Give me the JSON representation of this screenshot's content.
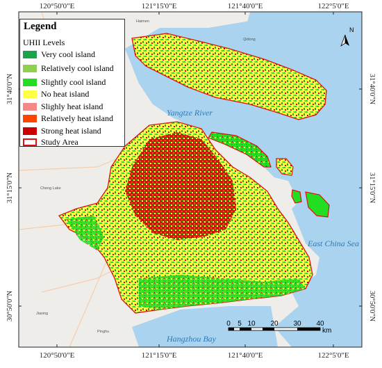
{
  "map": {
    "graticule": {
      "top_labels": [
        "120°50'0\"E",
        "121°15'0\"E",
        "121°40'0\"E",
        "122°5'0\"E"
      ],
      "bottom_labels": [
        "120°50'0\"E",
        "121°15'0\"E",
        "121°40'0\"E",
        "122°5'0\"E"
      ],
      "left_labels": [
        "31°40'0\"N",
        "31°15'0\"N",
        "30°50'0\"N"
      ],
      "right_labels": [
        "31°40'0\"N",
        "31°15'0\"N",
        "30°50'0\"N"
      ]
    },
    "water_labels": {
      "yangtze": "Yangtze River",
      "east_china_sea": "East China Sea",
      "hangzhou_bay": "Hangzhou Bay"
    },
    "place_labels": [
      "Haimen",
      "Qidong",
      "Cheng Lake",
      "Jiaxing",
      "Pinghu"
    ],
    "north_arrow": {
      "label": "N",
      "icon": "north-arrow-icon"
    },
    "scale_bar": {
      "ticks": [
        "0",
        "5",
        "10",
        "20",
        "30",
        "40"
      ],
      "unit": "km"
    },
    "colors": {
      "water": "#a9d3ee",
      "land_base": "#efedea",
      "study_area_outline": "#e01010"
    }
  },
  "legend": {
    "title": "Legend",
    "subtitle": "UHII Levels",
    "items": [
      {
        "label": "Very cool island",
        "color": "#1aa34a"
      },
      {
        "label": "Relatively cool island",
        "color": "#8fd14f"
      },
      {
        "label": "Slightly cool island",
        "color": "#22dd22"
      },
      {
        "label": "No heat island",
        "color": "#ffff44"
      },
      {
        "label": "Slighly heat island",
        "color": "#f48888"
      },
      {
        "label": "Relatively heat island",
        "color": "#ff4400"
      },
      {
        "label": "Strong heat island",
        "color": "#cc0000"
      },
      {
        "label": "Study Area",
        "color": "#e01010",
        "outline": true
      }
    ]
  }
}
